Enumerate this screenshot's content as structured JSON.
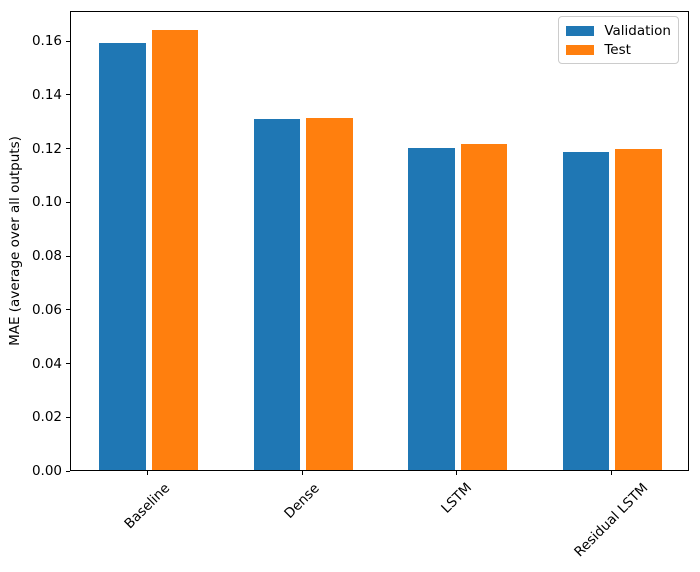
{
  "figure": {
    "background": "#ffffff",
    "axis_color": "#000000",
    "legend_border_color": "#cccccc"
  },
  "chart_data": {
    "type": "bar",
    "title": "",
    "xlabel": "",
    "ylabel": "MAE (average over all outputs)",
    "categories": [
      "Baseline",
      "Dense",
      "LSTM",
      "Residual LSTM"
    ],
    "series": [
      {
        "name": "Validation",
        "color": "#1f77b4",
        "values": [
          0.1589,
          0.1306,
          0.12,
          0.1182
        ]
      },
      {
        "name": "Test",
        "color": "#ff7f0e",
        "values": [
          0.1638,
          0.1311,
          0.1214,
          0.1194
        ]
      }
    ],
    "ylim": [
      0,
      0.1712
    ],
    "yticks": [
      0.0,
      0.02,
      0.04,
      0.06,
      0.08,
      0.1,
      0.12,
      0.14,
      0.16
    ],
    "ytick_labels": [
      "0.00",
      "0.02",
      "0.04",
      "0.06",
      "0.08",
      "0.10",
      "0.12",
      "0.14",
      "0.16"
    ],
    "bar_width": 0.3,
    "group_offsets": [
      -0.17,
      0.17
    ],
    "xtick_rotation": 45,
    "grid": false,
    "legend_position": "upper right"
  }
}
